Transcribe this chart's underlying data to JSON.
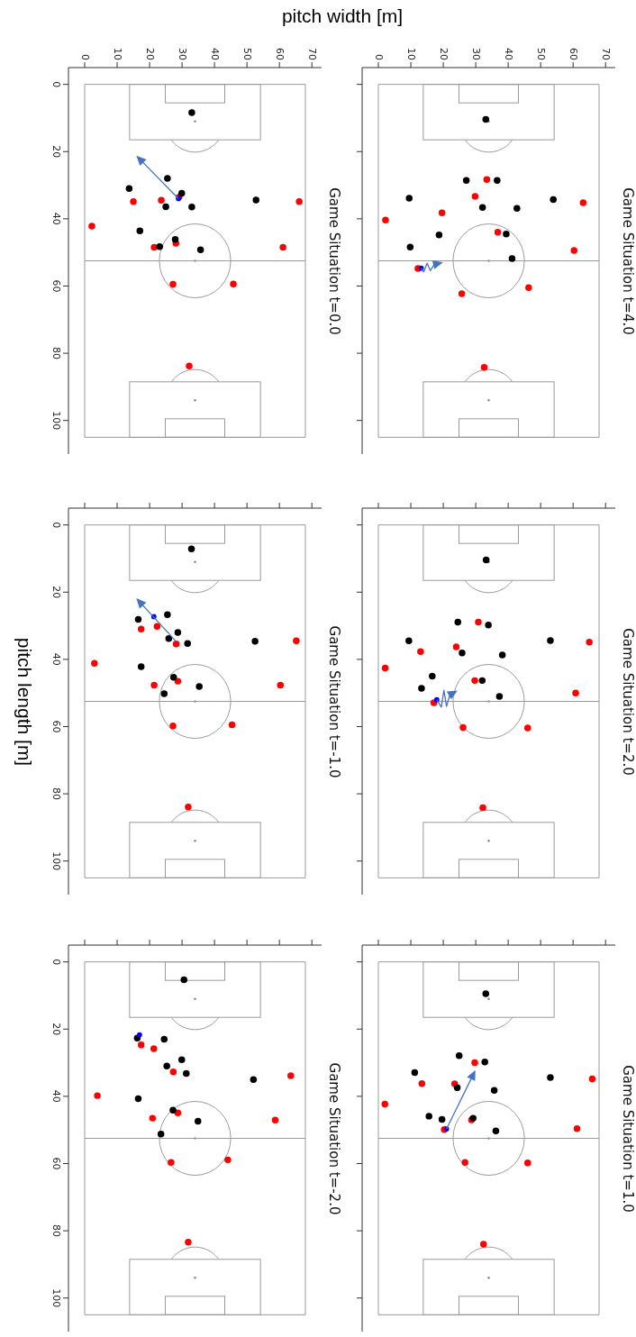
{
  "chart_data": [
    {
      "type": "scatter",
      "title": "Game Situation t=0.0",
      "xlabel": "pitch width [m]",
      "xlim": [
        -5,
        73
      ],
      "ylim": [
        110,
        -5
      ],
      "xticks": [
        0,
        10,
        20,
        30,
        40,
        50,
        60,
        70
      ],
      "yticks": [
        0,
        20,
        40,
        60,
        80,
        100
      ],
      "marker": "circle",
      "ref_lines": [
        {
          "axis": "x",
          "value": 0,
          "color": "#9a9a9a"
        },
        {
          "axis": "x",
          "value": 68,
          "color": "#9a9a9a"
        },
        {
          "axis": "y",
          "value": 0,
          "color": "#9a9a9a"
        },
        {
          "axis": "y",
          "value": 52.5,
          "color": "#9a9a9a"
        },
        {
          "axis": "y",
          "value": 105,
          "color": "#9a9a9a"
        }
      ],
      "series": [
        {
          "color": "#ff0000",
          "x": [
            29.1,
            15.0,
            23.6,
            66.1,
            2.2,
            21.4,
            28.1,
            61.1,
            27.2,
            45.8,
            32.2
          ],
          "values": [
            33.5,
            34.9,
            34.5,
            34.9,
            42.2,
            48.5,
            47.3,
            48.5,
            59.5,
            59.4,
            83.8
          ]
        },
        {
          "color": "#000000",
          "x": [
            33.0,
            25.5,
            13.7,
            29.9,
            52.8,
            25.0,
            33.0,
            17.0,
            27.9,
            23.1,
            35.7
          ],
          "values": [
            8.4,
            28.0,
            31.0,
            32.4,
            34.4,
            36.4,
            36.5,
            43.6,
            46.1,
            48.3,
            49.2
          ]
        },
        {
          "color": "#0000ff",
          "x": [
            28.9
          ],
          "values": [
            34.0
          ]
        }
      ]
    },
    {
      "type": "scatter",
      "title": "Game Situation t=4.0",
      "xlim": [
        -5,
        73
      ],
      "ylim": [
        110,
        -5
      ],
      "xticks": [
        0,
        10,
        20,
        30,
        40,
        50,
        60,
        70
      ],
      "yticks": [
        0,
        20,
        40,
        60,
        80,
        100
      ],
      "tick_labels": "x",
      "marker": "circle",
      "ref_lines": [
        {
          "axis": "x",
          "value": 0,
          "color": "#9a9a9a"
        },
        {
          "axis": "x",
          "value": 68,
          "color": "#9a9a9a"
        },
        {
          "axis": "y",
          "value": 0,
          "color": "#9a9a9a"
        },
        {
          "axis": "y",
          "value": 52.5,
          "color": "#9a9a9a"
        },
        {
          "axis": "y",
          "value": 105,
          "color": "#9a9a9a"
        }
      ],
      "series": [
        {
          "color": "#ff0000",
          "x": [
            33.4,
            29.8,
            63.1,
            19.6,
            2.2,
            36.8,
            60.3,
            12.2,
            46.3,
            25.7,
            32.6
          ],
          "values": [
            28.3,
            33.3,
            35.2,
            38.2,
            40.4,
            44.0,
            49.4,
            54.8,
            60.5,
            62.3,
            84.2
          ]
        },
        {
          "color": "#000000",
          "x": [
            33.1,
            27.1,
            36.6,
            9.5,
            53.9,
            32.1,
            42.7,
            18.7,
            39.4,
            9.8,
            41.2
          ],
          "values": [
            10.4,
            28.6,
            28.6,
            33.9,
            34.3,
            36.6,
            36.9,
            44.8,
            44.5,
            48.4,
            51.8
          ]
        },
        {
          "color": "#0000ff",
          "x": [
            13.2
          ],
          "values": [
            54.7
          ]
        }
      ]
    },
    {
      "type": "scatter",
      "title": "Game Situation t=-1.0",
      "ylabel": "pitch length [m]",
      "xlim": [
        -5,
        73
      ],
      "ylim": [
        110,
        -5
      ],
      "xticks": [
        0,
        10,
        20,
        30,
        40,
        50,
        60,
        70
      ],
      "yticks": [
        0,
        20,
        40,
        60,
        80,
        100
      ],
      "tick_labels": "y",
      "marker": "circle",
      "ref_lines": [
        {
          "axis": "x",
          "value": 0,
          "color": "#9a9a9a"
        },
        {
          "axis": "x",
          "value": 68,
          "color": "#9a9a9a"
        },
        {
          "axis": "y",
          "value": 0,
          "color": "#9a9a9a"
        },
        {
          "axis": "y",
          "value": 52.5,
          "color": "#9a9a9a"
        },
        {
          "axis": "y",
          "value": 105,
          "color": "#9a9a9a"
        }
      ],
      "series": [
        {
          "color": "#ff0000",
          "x": [
            17.4,
            22.3,
            28.2,
            65.2,
            3.0,
            21.4,
            28.7,
            60.3,
            27.2,
            45.4,
            31.9
          ],
          "values": [
            31.0,
            30.2,
            35.4,
            34.5,
            41.2,
            47.7,
            46.5,
            47.7,
            59.8,
            59.5,
            83.9
          ]
        },
        {
          "color": "#000000",
          "x": [
            32.9,
            25.5,
            16.5,
            28.7,
            25.9,
            31.7,
            52.5,
            17.4,
            27.4,
            35.3,
            24.5
          ],
          "values": [
            7.1,
            26.7,
            28.1,
            32.0,
            33.8,
            35.3,
            34.6,
            42.2,
            45.3,
            48.1,
            50.2
          ]
        },
        {
          "color": "#0000ff",
          "x": [
            21.3
          ],
          "values": [
            27.3
          ]
        }
      ]
    },
    {
      "type": "scatter",
      "title": "Game Situation t=2.0",
      "xlim": [
        -5,
        73
      ],
      "ylim": [
        110,
        -5
      ],
      "xticks": [
        0,
        10,
        20,
        30,
        40,
        50,
        60,
        70
      ],
      "yticks": [
        0,
        20,
        40,
        60,
        80,
        100
      ],
      "tick_labels": false,
      "marker": "circle",
      "ref_lines": [
        {
          "axis": "x",
          "value": 0,
          "color": "#9a9a9a"
        },
        {
          "axis": "x",
          "value": 68,
          "color": "#9a9a9a"
        },
        {
          "axis": "y",
          "value": 0,
          "color": "#9a9a9a"
        },
        {
          "axis": "y",
          "value": 52.5,
          "color": "#9a9a9a"
        },
        {
          "axis": "y",
          "value": 105,
          "color": "#9a9a9a"
        }
      ],
      "series": [
        {
          "color": "#ff0000",
          "x": [
            30.8,
            65.0,
            13.0,
            24.0,
            2.1,
            29.7,
            60.8,
            17.1,
            26.1,
            46.0,
            32.2
          ],
          "values": [
            28.9,
            34.9,
            37.7,
            36.3,
            42.6,
            46.3,
            50.0,
            52.9,
            60.3,
            60.4,
            84.1
          ]
        },
        {
          "color": "#000000",
          "x": [
            33.2,
            24.5,
            33.9,
            9.4,
            53.0,
            25.8,
            38.2,
            16.6,
            13.3,
            32.0,
            37.3
          ],
          "values": [
            10.4,
            28.9,
            29.8,
            34.5,
            34.4,
            38.1,
            38.7,
            45.0,
            48.6,
            46.3,
            51.0
          ]
        },
        {
          "color": "#0000ff",
          "x": [
            18.0
          ],
          "values": [
            52.0
          ]
        }
      ]
    },
    {
      "type": "scatter",
      "title": "Game Situation t=-2.0",
      "xlim": [
        -5,
        73
      ],
      "ylim": [
        110,
        -5
      ],
      "xticks": [
        0,
        10,
        20,
        30,
        40,
        50,
        60,
        70
      ],
      "yticks": [
        0,
        20,
        40,
        60,
        80,
        100
      ],
      "tick_labels": "y",
      "marker": "circle",
      "ref_lines": [
        {
          "axis": "x",
          "value": 0,
          "color": "#9a9a9a"
        },
        {
          "axis": "x",
          "value": 68,
          "color": "#9a9a9a"
        },
        {
          "axis": "y",
          "value": 0,
          "color": "#9a9a9a"
        },
        {
          "axis": "y",
          "value": 52.5,
          "color": "#9a9a9a"
        },
        {
          "axis": "y",
          "value": 105,
          "color": "#9a9a9a"
        }
      ],
      "series": [
        {
          "color": "#ff0000",
          "x": [
            17.4,
            21.3,
            27.3,
            63.5,
            3.9,
            20.9,
            28.7,
            58.7,
            26.6,
            44.1,
            31.9
          ],
          "values": [
            24.7,
            25.8,
            32.7,
            33.9,
            39.8,
            46.5,
            44.9,
            47.1,
            59.7,
            58.9,
            83.4
          ]
        },
        {
          "color": "#000000",
          "x": [
            30.6,
            16.2,
            24.5,
            29.9,
            25.3,
            31.3,
            52.0,
            16.5,
            27.2,
            34.9,
            23.5
          ],
          "values": [
            5.3,
            22.7,
            23.0,
            29.1,
            31.0,
            33.2,
            35.0,
            40.7,
            44.1,
            47.4,
            51.2
          ]
        },
        {
          "color": "#0000ff",
          "x": [
            16.9
          ],
          "values": [
            21.7
          ]
        }
      ]
    },
    {
      "type": "scatter",
      "title": "Game Situation t=1.0",
      "xlim": [
        -5,
        73
      ],
      "ylim": [
        110,
        -5
      ],
      "xticks": [
        0,
        10,
        20,
        30,
        40,
        50,
        60,
        70
      ],
      "yticks": [
        0,
        20,
        40,
        60,
        80,
        100
      ],
      "tick_labels": false,
      "marker": "circle",
      "ref_lines": [
        {
          "axis": "x",
          "value": 0,
          "color": "#9a9a9a"
        },
        {
          "axis": "x",
          "value": 68,
          "color": "#9a9a9a"
        },
        {
          "axis": "y",
          "value": 0,
          "color": "#9a9a9a"
        },
        {
          "axis": "y",
          "value": 52.5,
          "color": "#9a9a9a"
        },
        {
          "axis": "y",
          "value": 105,
          "color": "#9a9a9a"
        }
      ],
      "series": [
        {
          "color": "#ff0000",
          "x": [
            29.7,
            65.9,
            13.4,
            23.5,
            2.0,
            28.7,
            61.2,
            20.3,
            26.7,
            46.0,
            32.4
          ],
          "values": [
            30.0,
            34.8,
            36.2,
            36.3,
            42.3,
            47.0,
            49.6,
            49.9,
            59.7,
            59.8,
            84.0
          ]
        },
        {
          "color": "#000000",
          "x": [
            33.1,
            24.9,
            32.8,
            11.2,
            53.0,
            24.3,
            35.7,
            15.6,
            19.6,
            29.2,
            36.2
          ],
          "values": [
            9.5,
            27.9,
            29.8,
            32.9,
            34.4,
            37.4,
            38.2,
            45.9,
            46.9,
            46.5,
            50.3
          ]
        },
        {
          "color": "#0000ff",
          "x": [
            21.0
          ],
          "values": [
            49.7
          ]
        }
      ]
    }
  ]
}
